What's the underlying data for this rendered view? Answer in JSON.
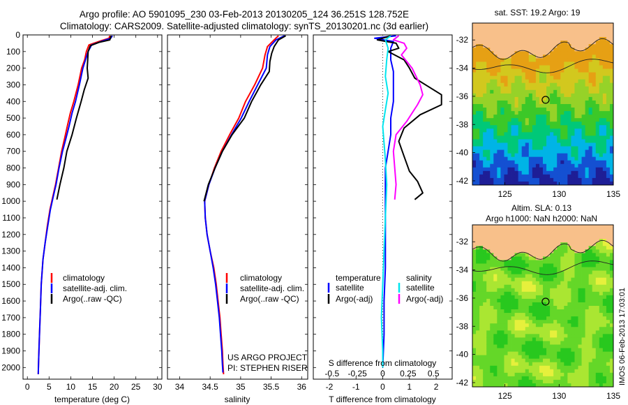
{
  "header": {
    "title_line1": "Argo profile: AO 5901095_230 03-Feb-2013 20130205_124 36.251S 128.752E",
    "title_line2": "Climatology: CARS2009. Satellite-adjusted climatology: synTS_20130201.nc (3d earlier)"
  },
  "footer": {
    "project": "US ARGO PROJECT",
    "pi": "PI: STEPHEN RISER",
    "imos_stamp": "IMOS 06-Feb-2013 17:03:01"
  },
  "colors": {
    "climatology": "#ff0000",
    "satellite": "#0000ff",
    "argo": "#000000",
    "sat_salinity": "#00e5ee",
    "argo_salinity": "#ff00ff",
    "land": "#f8c08a",
    "circle": "#000000"
  },
  "chart_data": [
    {
      "type": "line",
      "id": "temperature",
      "xlabel": "temperature (deg C)",
      "xlim": [
        -1,
        31
      ],
      "xticks": [
        0,
        5,
        10,
        15,
        20,
        25,
        30
      ],
      "ylim": [
        0,
        2070
      ],
      "yticks": [
        0,
        100,
        200,
        300,
        400,
        500,
        600,
        700,
        800,
        900,
        1000,
        1100,
        1200,
        1300,
        1400,
        1500,
        1600,
        1700,
        1800,
        1900,
        2000
      ],
      "legend": [
        "climatology",
        "satellite-adj. clim.",
        "Argo(..raw -QC)"
      ],
      "series": [
        {
          "name": "climatology",
          "color": "#ff0000",
          "points": [
            [
              19.0,
              5
            ],
            [
              18.8,
              20
            ],
            [
              17,
              35
            ],
            [
              14.2,
              60
            ],
            [
              13.6,
              100
            ],
            [
              13.2,
              150
            ],
            [
              12.5,
              200
            ],
            [
              11.7,
              300
            ],
            [
              10.7,
              400
            ],
            [
              9.9,
              470
            ],
            [
              9.2,
              550
            ],
            [
              8.6,
              620
            ],
            [
              7.9,
              700
            ],
            [
              7.2,
              800
            ],
            [
              6.5,
              900
            ],
            [
              5.8,
              980
            ],
            [
              5.2,
              1050
            ],
            [
              4.6,
              1150
            ],
            [
              4.1,
              1250
            ],
            [
              3.6,
              1350
            ],
            [
              3.2,
              1500
            ],
            [
              3.0,
              1650
            ],
            [
              2.8,
              1800
            ],
            [
              2.6,
              1950
            ],
            [
              2.5,
              2040
            ]
          ]
        },
        {
          "name": "satellite-adj. clim.",
          "color": "#0000ff",
          "points": [
            [
              19.6,
              5
            ],
            [
              19.2,
              20
            ],
            [
              17.5,
              35
            ],
            [
              14.8,
              60
            ],
            [
              14.0,
              100
            ],
            [
              13.4,
              150
            ],
            [
              12.8,
              200
            ],
            [
              12.0,
              300
            ],
            [
              11.1,
              400
            ],
            [
              10.3,
              470
            ],
            [
              9.6,
              550
            ],
            [
              8.9,
              620
            ],
            [
              8.1,
              700
            ],
            [
              7.3,
              800
            ],
            [
              6.6,
              900
            ],
            [
              5.9,
              980
            ],
            [
              5.3,
              1050
            ],
            [
              4.7,
              1150
            ],
            [
              4.1,
              1250
            ],
            [
              3.6,
              1350
            ],
            [
              3.2,
              1500
            ],
            [
              3.0,
              1650
            ],
            [
              2.8,
              1800
            ],
            [
              2.6,
              1950
            ],
            [
              2.5,
              2040
            ]
          ]
        },
        {
          "name": "Argo(..raw -QC)",
          "color": "#000000",
          "points": [
            [
              19.3,
              5
            ],
            [
              19.0,
              30
            ],
            [
              16.5,
              45
            ],
            [
              14.5,
              65
            ],
            [
              14.0,
              100
            ],
            [
              13.9,
              150
            ],
            [
              13.8,
              200
            ],
            [
              14.0,
              260
            ],
            [
              13.1,
              330
            ],
            [
              12.4,
              400
            ],
            [
              11.3,
              500
            ],
            [
              10.3,
              600
            ],
            [
              9.1,
              700
            ],
            [
              8.4,
              800
            ],
            [
              7.5,
              900
            ],
            [
              6.8,
              990
            ]
          ]
        }
      ]
    },
    {
      "type": "line",
      "id": "salinity",
      "xlabel": "salinity",
      "xlim": [
        33.8,
        36.1
      ],
      "xticks": [
        34,
        34.5,
        35,
        35.5,
        36
      ],
      "ylim": [
        0,
        2070
      ],
      "legend": [
        "climatology",
        "satellite-adj. clim.",
        "Argo(..raw -QC)"
      ],
      "series": [
        {
          "name": "climatology",
          "color": "#ff0000",
          "points": [
            [
              35.62,
              5
            ],
            [
              35.55,
              30
            ],
            [
              35.44,
              70
            ],
            [
              35.4,
              120
            ],
            [
              35.36,
              200
            ],
            [
              35.23,
              300
            ],
            [
              35.08,
              400
            ],
            [
              34.97,
              500
            ],
            [
              34.82,
              600
            ],
            [
              34.68,
              700
            ],
            [
              34.57,
              800
            ],
            [
              34.48,
              900
            ],
            [
              34.41,
              1000
            ],
            [
              34.42,
              1100
            ],
            [
              34.45,
              1200
            ],
            [
              34.5,
              1300
            ],
            [
              34.56,
              1400
            ],
            [
              34.6,
              1500
            ],
            [
              34.63,
              1600
            ],
            [
              34.66,
              1700
            ],
            [
              34.68,
              1800
            ],
            [
              34.7,
              1900
            ],
            [
              34.71,
              1980
            ],
            [
              34.72,
              2040
            ]
          ]
        },
        {
          "name": "satellite-adj. clim.",
          "color": "#0000ff",
          "points": [
            [
              35.72,
              5
            ],
            [
              35.58,
              30
            ],
            [
              35.48,
              70
            ],
            [
              35.44,
              120
            ],
            [
              35.42,
              200
            ],
            [
              35.28,
              300
            ],
            [
              35.14,
              400
            ],
            [
              35.01,
              500
            ],
            [
              34.85,
              600
            ],
            [
              34.7,
              700
            ],
            [
              34.58,
              800
            ],
            [
              34.48,
              900
            ],
            [
              34.41,
              1000
            ],
            [
              34.42,
              1100
            ],
            [
              34.45,
              1200
            ],
            [
              34.5,
              1300
            ],
            [
              34.55,
              1400
            ],
            [
              34.59,
              1500
            ],
            [
              34.62,
              1600
            ],
            [
              34.65,
              1700
            ],
            [
              34.67,
              1800
            ],
            [
              34.69,
              1900
            ],
            [
              34.7,
              1980
            ],
            [
              34.71,
              2030
            ]
          ]
        },
        {
          "name": "Argo(..raw -QC)",
          "color": "#000000",
          "points": [
            [
              35.74,
              5
            ],
            [
              35.62,
              30
            ],
            [
              35.55,
              70
            ],
            [
              35.51,
              110
            ],
            [
              35.48,
              160
            ],
            [
              35.47,
              220
            ],
            [
              35.33,
              300
            ],
            [
              35.27,
              340
            ],
            [
              35.18,
              400
            ],
            [
              35.06,
              500
            ],
            [
              34.86,
              600
            ],
            [
              34.7,
              700
            ],
            [
              34.58,
              800
            ],
            [
              34.47,
              900
            ],
            [
              34.4,
              1000
            ]
          ]
        }
      ]
    },
    {
      "type": "line",
      "id": "difference",
      "xlabel_top": "S difference from climatology",
      "xlabel": "T difference from climatology",
      "xlim_T": [
        -2.6,
        2.6
      ],
      "xticks_T": [
        -2,
        -1,
        0,
        1,
        2
      ],
      "xticks_S_labels": [
        "-0.5",
        "-0.25",
        "0",
        "0.25",
        "0.5"
      ],
      "xticks_S_T_positions": [
        -1.9,
        -0.95,
        0,
        0.95,
        1.9
      ],
      "ylim": [
        0,
        2070
      ],
      "legend_titles": [
        "temperature",
        "salinity"
      ],
      "legend": [
        "satellite",
        "Argo(-adj)",
        "satellite",
        "Argo(-adj)"
      ],
      "series": [
        {
          "name": "satellite",
          "color": "#0000ff",
          "points": [
            [
              0.5,
              5
            ],
            [
              -0.3,
              20
            ],
            [
              0.4,
              40
            ],
            [
              0.3,
              80
            ],
            [
              0.3,
              150
            ],
            [
              0.4,
              220
            ],
            [
              0.4,
              300
            ],
            [
              0.4,
              400
            ],
            [
              0.3,
              500
            ],
            [
              0.3,
              600
            ],
            [
              0.2,
              700
            ],
            [
              0.1,
              800
            ],
            [
              0.1,
              900
            ],
            [
              0.1,
              1000
            ],
            [
              0.1,
              1200
            ],
            [
              0.1,
              1400
            ],
            [
              0.05,
              1600
            ],
            [
              0.05,
              1800
            ],
            [
              0.0,
              2000
            ]
          ]
        },
        {
          "name": "Argo(-adj)",
          "color": "#000000",
          "points": [
            [
              0.3,
              5
            ],
            [
              -0.2,
              30
            ],
            [
              0.5,
              50
            ],
            [
              0.6,
              80
            ],
            [
              0.2,
              100
            ],
            [
              0.8,
              150
            ],
            [
              1.0,
              200
            ],
            [
              1.2,
              260
            ],
            [
              1.7,
              310
            ],
            [
              2.2,
              360
            ],
            [
              2.2,
              420
            ],
            [
              1.4,
              480
            ],
            [
              0.8,
              560
            ],
            [
              0.6,
              640
            ],
            [
              0.8,
              730
            ],
            [
              1.0,
              820
            ],
            [
              1.3,
              880
            ],
            [
              1.5,
              950
            ],
            [
              1.2,
              990
            ]
          ]
        },
        {
          "name": "satellite",
          "color": "#00e5ee",
          "points": [
            [
              0.3,
              5
            ],
            [
              0.1,
              30
            ],
            [
              0.2,
              80
            ],
            [
              0.15,
              150
            ],
            [
              0.1,
              250
            ],
            [
              0.2,
              350
            ],
            [
              0.1,
              450
            ],
            [
              0.0,
              550
            ],
            [
              0.05,
              650
            ],
            [
              0.1,
              750
            ],
            [
              0.15,
              900
            ],
            [
              0.1,
              1100
            ],
            [
              0.05,
              1300
            ],
            [
              0.0,
              1500
            ],
            [
              -0.05,
              1700
            ],
            [
              0.0,
              1900
            ],
            [
              0.0,
              2000
            ]
          ]
        },
        {
          "name": "Argo(-adj)",
          "color": "#ff00ff",
          "points": [
            [
              0.6,
              5
            ],
            [
              0.4,
              30
            ],
            [
              0.8,
              50
            ],
            [
              0.9,
              80
            ],
            [
              0.7,
              120
            ],
            [
              1.1,
              200
            ],
            [
              1.4,
              300
            ],
            [
              1.5,
              360
            ],
            [
              1.3,
              420
            ],
            [
              0.9,
              520
            ],
            [
              0.5,
              600
            ],
            [
              0.4,
              700
            ],
            [
              0.45,
              800
            ],
            [
              0.5,
              900
            ],
            [
              0.45,
              990
            ]
          ]
        }
      ]
    },
    {
      "type": "heatmap",
      "id": "sst_map",
      "title": "sat. SST: 19.2 Argo: 19",
      "xlim": [
        122,
        135
      ],
      "ylim": [
        -42.3,
        -30.8
      ],
      "xticks": [
        125,
        130,
        135
      ],
      "yticks": [
        -32,
        -34,
        -36,
        -38,
        -40,
        -42
      ],
      "argo_position": [
        128.752,
        -36.251
      ],
      "palette": [
        "#1e1e96",
        "#1450d2",
        "#00b4e6",
        "#00c878",
        "#3cc828",
        "#96d228",
        "#d2c81e",
        "#e6a014"
      ]
    },
    {
      "type": "heatmap",
      "id": "sla_map",
      "title_line1": "Altim. SLA: 0.13",
      "title_line2": "Argo h1000: NaN h2000: NaN",
      "xlim": [
        122,
        135
      ],
      "ylim": [
        -42.3,
        -30.8
      ],
      "xticks": [
        125,
        130,
        135
      ],
      "yticks": [
        -32,
        -34,
        -36,
        -38,
        -40,
        -42
      ],
      "argo_position": [
        128.752,
        -36.251
      ],
      "palette": [
        "#28c81e",
        "#64d728",
        "#aae632",
        "#e6f03c"
      ]
    }
  ]
}
